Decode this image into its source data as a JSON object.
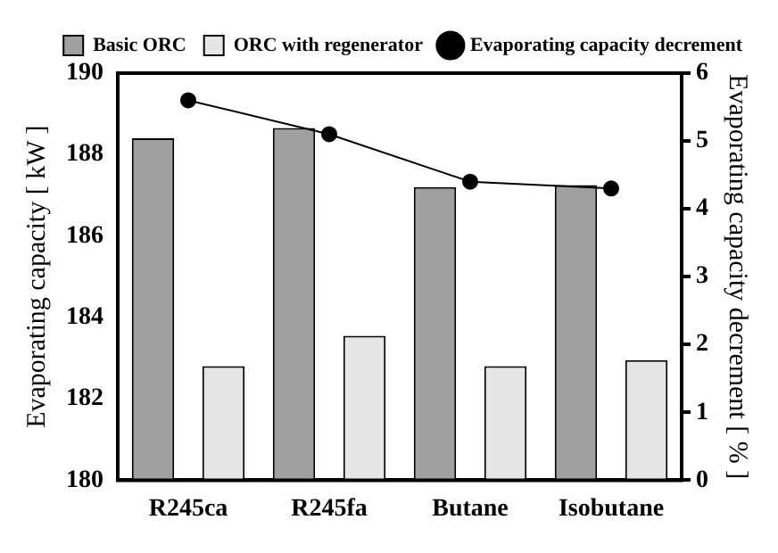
{
  "chart_data": {
    "type": "bar",
    "categories": [
      "R245ca",
      "R245fa",
      "Butane",
      "Isobutane"
    ],
    "ylabel": "Evaporating capacity [ kW ]",
    "y2label": "Evaporating capacity decrement [ % ]",
    "series": [
      {
        "name": "Basic ORC",
        "color": "#a0a0a0",
        "values": [
          188.4,
          188.65,
          187.2,
          187.25
        ]
      },
      {
        "name": "ORC with regenerator",
        "color": "#e6e6e6",
        "values": [
          182.8,
          183.55,
          182.8,
          182.95
        ]
      },
      {
        "name": "Evaporating capacity decrement",
        "type": "line",
        "axis": "y2",
        "color": "#000000",
        "marker": "circle",
        "values": [
          5.6,
          5.1,
          4.4,
          4.3
        ]
      }
    ],
    "ylim": [
      180,
      190
    ],
    "yticks": [
      180,
      182,
      184,
      186,
      188,
      190
    ],
    "y2lim": [
      0,
      6
    ],
    "y2ticks": [
      0,
      1,
      2,
      3,
      4,
      5,
      6
    ],
    "grid": false,
    "legend": "top right"
  }
}
